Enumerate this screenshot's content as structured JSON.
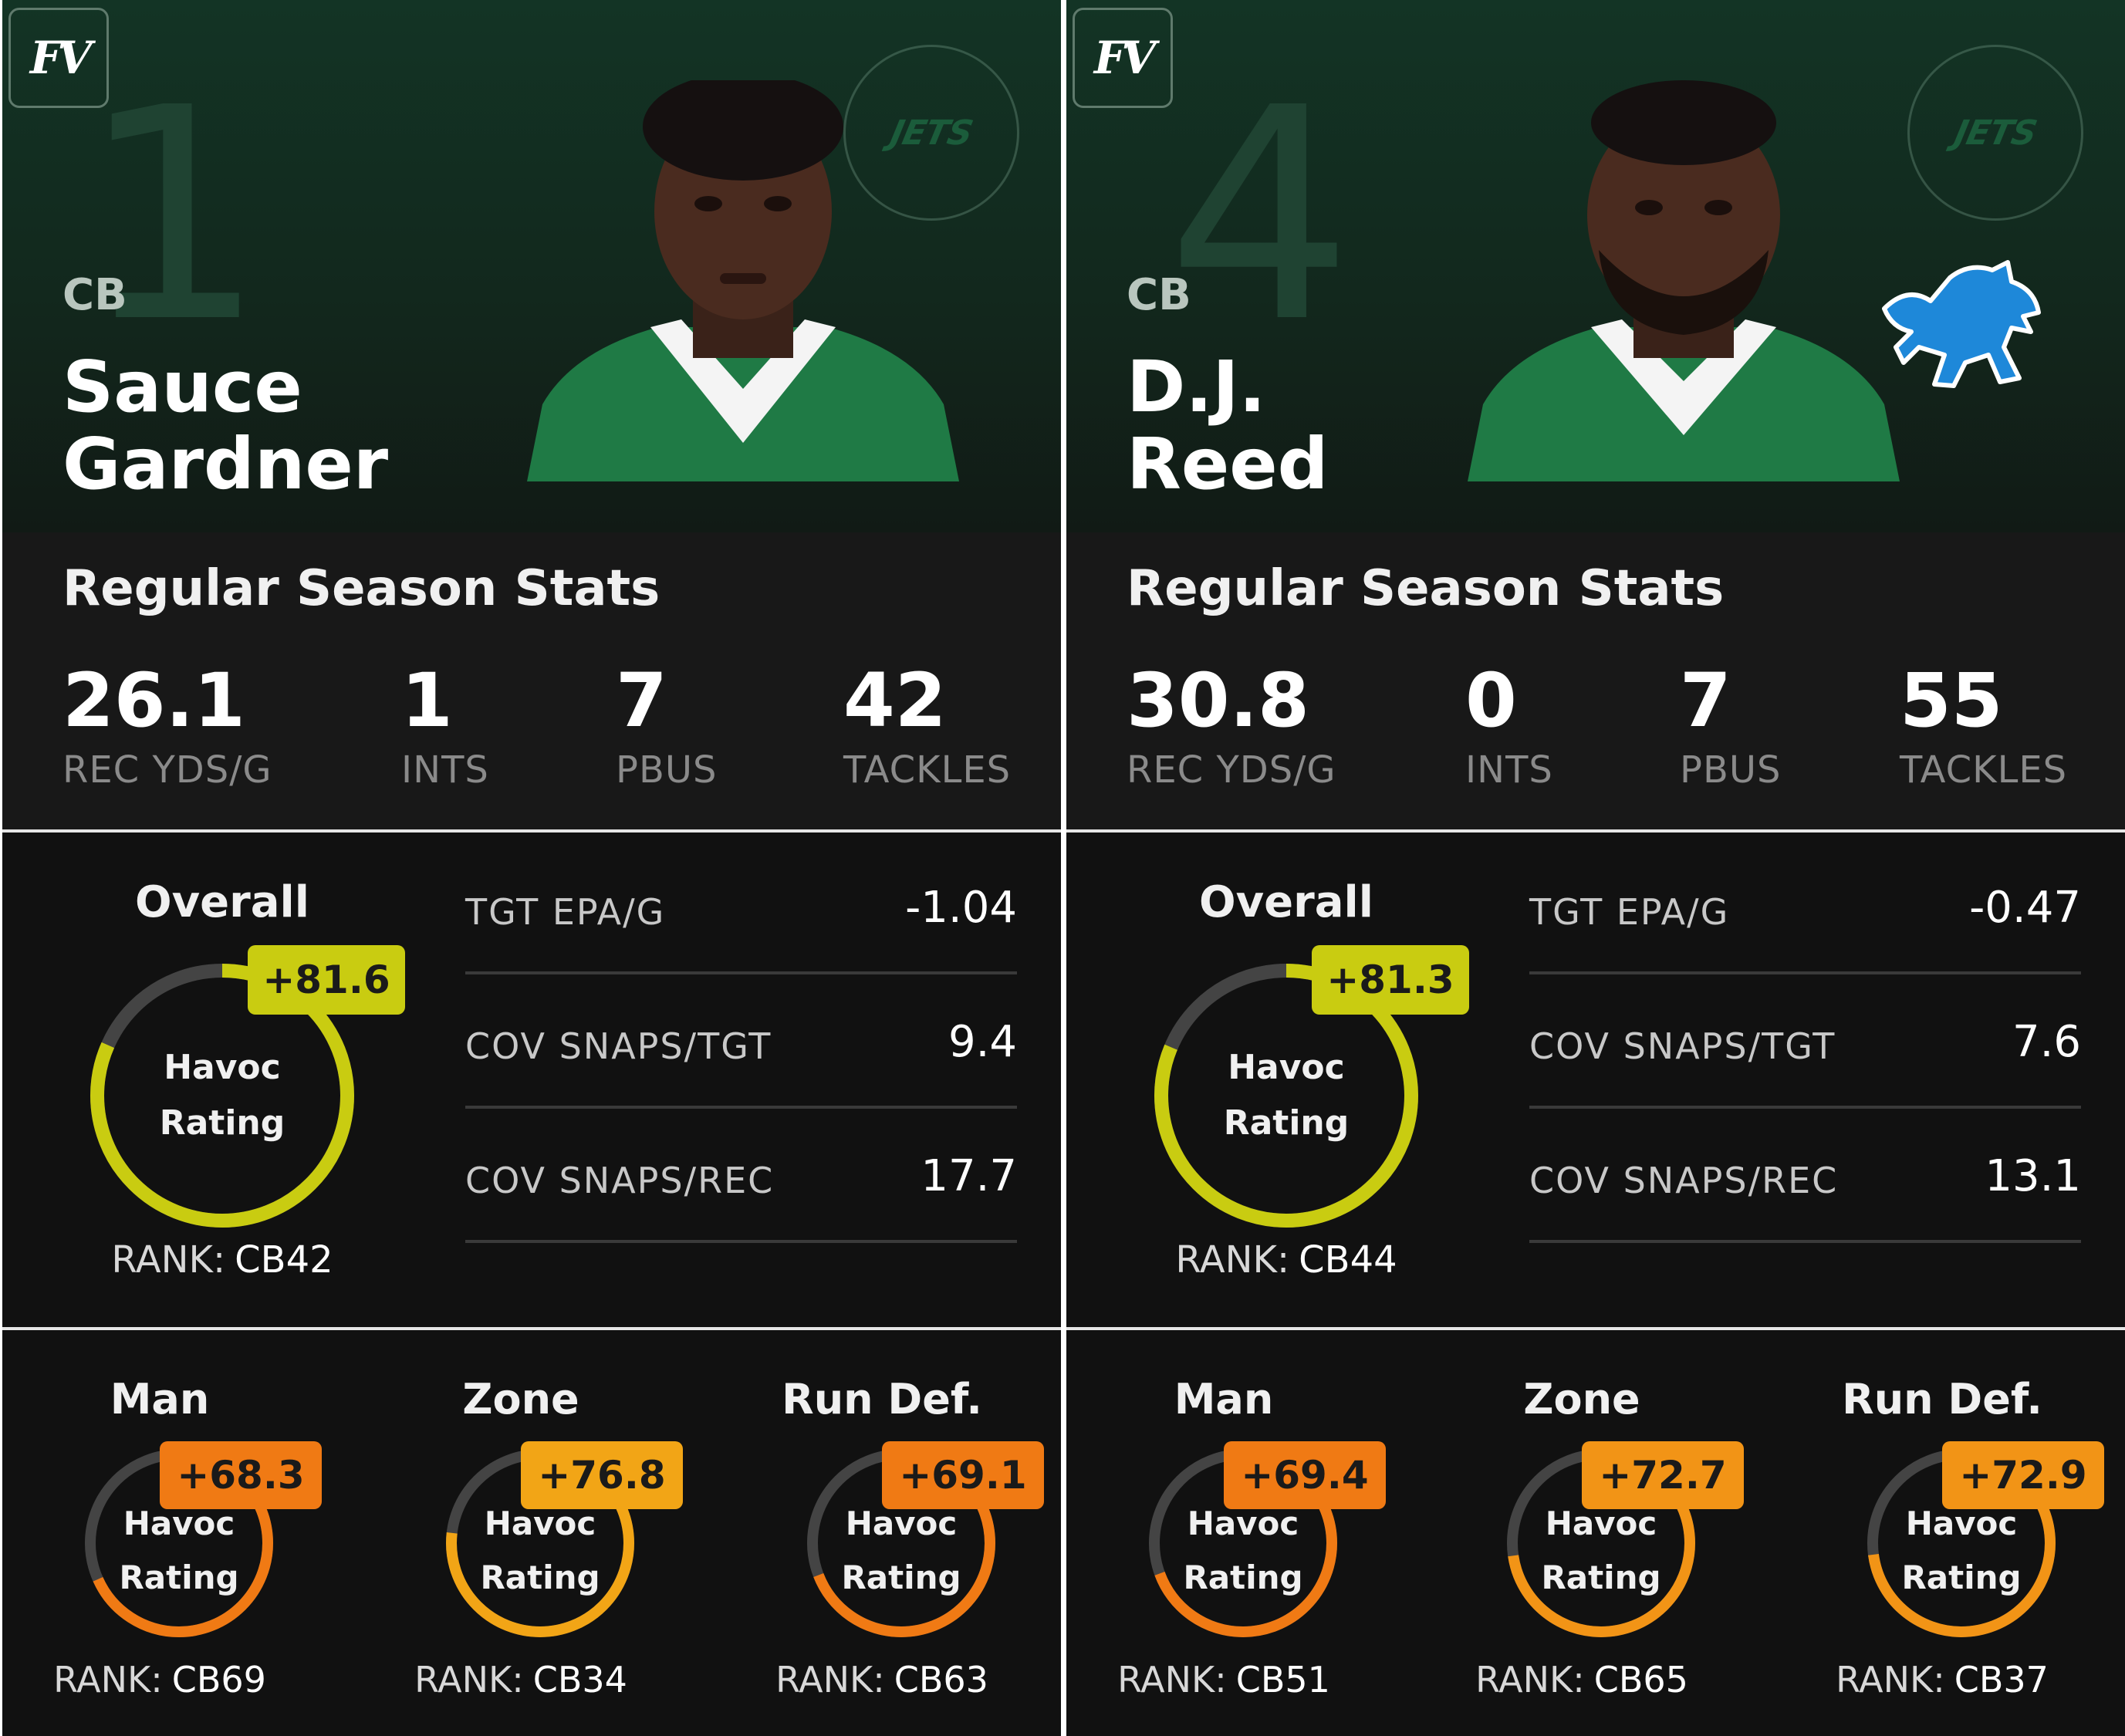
{
  "brand": {
    "logo_text": "FV"
  },
  "cards": [
    {
      "rank": "1",
      "position": "CB",
      "name_first": "Sauce",
      "name_last": "Gardner",
      "team_logo_text": "JETS",
      "season_title": "Regular Season Stats",
      "stats": [
        {
          "value": "26.1",
          "label": "REC YDS/G"
        },
        {
          "value": "1",
          "label": "INTS"
        },
        {
          "value": "7",
          "label": "PBUS"
        },
        {
          "value": "42",
          "label": "TACKLES"
        }
      ],
      "overall": {
        "title": "Overall",
        "rating": "+81.6",
        "ring_line1": "Havoc",
        "ring_line2": "Rating",
        "rank_label": "RANK:",
        "rank_value": "CB42",
        "fill": 0.816
      },
      "metrics": [
        {
          "label": "TGT EPA/G",
          "value": "-1.04"
        },
        {
          "label": "COV SNAPS/TGT",
          "value": "9.4"
        },
        {
          "label": "COV SNAPS/REC",
          "value": "17.7"
        }
      ],
      "subs": [
        {
          "title": "Man",
          "rating": "+68.3",
          "ring_line1": "Havoc",
          "ring_line2": "Rating",
          "rank_label": "RANK:",
          "rank_value": "CB69",
          "fill": 0.683,
          "color": "#f07a14"
        },
        {
          "title": "Zone",
          "rating": "+76.8",
          "ring_line1": "Havoc",
          "ring_line2": "Rating",
          "rank_label": "RANK:",
          "rank_value": "CB34",
          "fill": 0.768,
          "color": "#f2a516"
        },
        {
          "title": "Run Def.",
          "rating": "+69.1",
          "ring_line1": "Havoc",
          "ring_line2": "Rating",
          "rank_label": "RANK:",
          "rank_value": "CB63",
          "fill": 0.691,
          "color": "#f07a14"
        }
      ]
    },
    {
      "rank": "4",
      "position": "CB",
      "name_first": "D.J.",
      "name_last": "Reed",
      "team_logo_text": "JETS",
      "season_title": "Regular Season Stats",
      "stats": [
        {
          "value": "30.8",
          "label": "REC YDS/G"
        },
        {
          "value": "0",
          "label": "INTS"
        },
        {
          "value": "7",
          "label": "PBUS"
        },
        {
          "value": "55",
          "label": "TACKLES"
        }
      ],
      "overall": {
        "title": "Overall",
        "rating": "+81.3",
        "ring_line1": "Havoc",
        "ring_line2": "Rating",
        "rank_label": "RANK:",
        "rank_value": "CB44",
        "fill": 0.813
      },
      "metrics": [
        {
          "label": "TGT EPA/G",
          "value": "-0.47"
        },
        {
          "label": "COV SNAPS/TGT",
          "value": "7.6"
        },
        {
          "label": "COV SNAPS/REC",
          "value": "13.1"
        }
      ],
      "subs": [
        {
          "title": "Man",
          "rating": "+69.4",
          "ring_line1": "Havoc",
          "ring_line2": "Rating",
          "rank_label": "RANK:",
          "rank_value": "CB51",
          "fill": 0.694,
          "color": "#f07a14"
        },
        {
          "title": "Zone",
          "rating": "+72.7",
          "ring_line1": "Havoc",
          "ring_line2": "Rating",
          "rank_label": "RANK:",
          "rank_value": "CB65",
          "fill": 0.727,
          "color": "#f29416"
        },
        {
          "title": "Run Def.",
          "rating": "+72.9",
          "ring_line1": "Havoc",
          "ring_line2": "Rating",
          "rank_label": "RANK:",
          "rank_value": "CB37",
          "fill": 0.729,
          "color": "#f29416"
        }
      ]
    }
  ],
  "colors": {
    "overall_ring": "#c9cc11",
    "ring_track": "#444444",
    "orange_badge": "#f07a14",
    "amber_badge": "#f2a516"
  }
}
